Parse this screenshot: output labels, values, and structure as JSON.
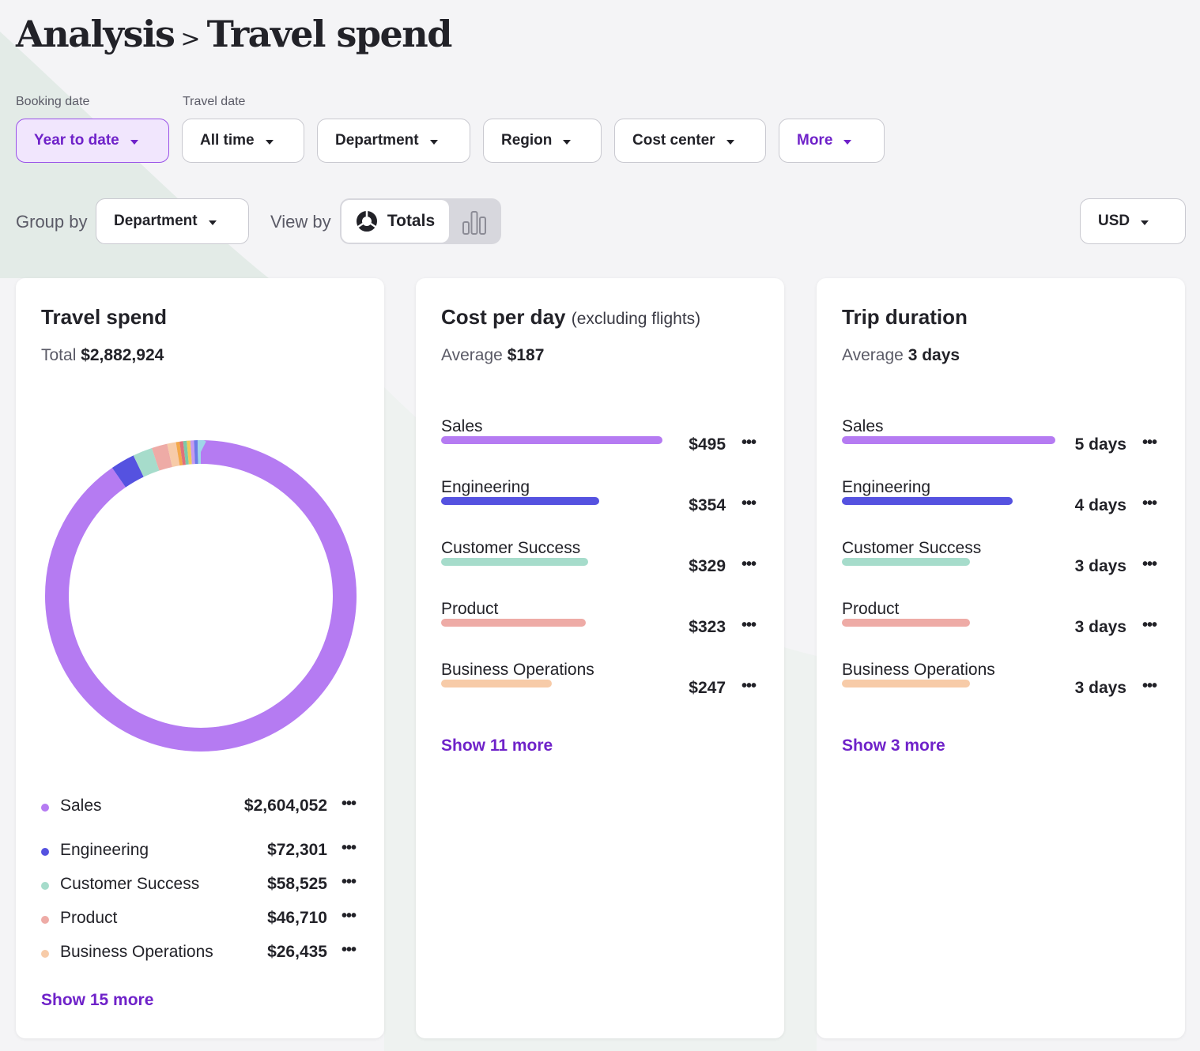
{
  "page": {
    "title_parent": "Analysis",
    "title_separator": ">",
    "title_current": "Travel spend"
  },
  "filters": {
    "booking_label": "Booking date",
    "travel_label": "Travel date",
    "booking_value": "Year to date",
    "travel_value": "All time",
    "department": "Department",
    "region": "Region",
    "cost_center": "Cost center",
    "more": "More"
  },
  "controls": {
    "group_by_label": "Group by",
    "group_by_value": "Department",
    "view_by_label": "View by",
    "view_totals": "Totals",
    "currency": "USD"
  },
  "colors": {
    "accent": "#6f22c9",
    "sales": "#b57bf2",
    "engineering": "#5552e0",
    "customer_success": "#a6dccb",
    "product": "#eeaba6",
    "business_operations": "#f7cba8"
  },
  "travel_spend": {
    "title": "Travel spend",
    "total_label": "Total",
    "total_value": "$2,882,924",
    "items": [
      {
        "label": "Sales",
        "value": "$2,604,052",
        "color": "#b57bf2"
      },
      {
        "label": "Engineering",
        "value": "$72,301",
        "color": "#5552e0"
      },
      {
        "label": "Customer Success",
        "value": "$58,525",
        "color": "#a6dccb"
      },
      {
        "label": "Product",
        "value": "$46,710",
        "color": "#eeaba6"
      },
      {
        "label": "Business Operations",
        "value": "$26,435",
        "color": "#f7cba8"
      }
    ],
    "show_more": "Show 15 more"
  },
  "chart_data": {
    "type": "pie",
    "categories": [
      "Sales",
      "Engineering",
      "Customer Success",
      "Product",
      "Business Operations"
    ],
    "values": [
      2604052,
      72301,
      58525,
      46710,
      26435
    ],
    "total": 2882924
  },
  "cost_per_day": {
    "title": "Cost per day",
    "subtitle": "(excluding flights)",
    "avg_label": "Average",
    "avg_value": "$187",
    "items": [
      {
        "label": "Sales",
        "value": "$495",
        "amount": 495,
        "color": "#b57bf2"
      },
      {
        "label": "Engineering",
        "value": "$354",
        "amount": 354,
        "color": "#5552e0"
      },
      {
        "label": "Customer Success",
        "value": "$329",
        "amount": 329,
        "color": "#a6dccb"
      },
      {
        "label": "Product",
        "value": "$323",
        "amount": 323,
        "color": "#eeaba6"
      },
      {
        "label": "Business Operations",
        "value": "$247",
        "amount": 247,
        "color": "#f7cba8"
      }
    ],
    "show_more": "Show 11 more"
  },
  "trip_duration": {
    "title": "Trip duration",
    "avg_label": "Average",
    "avg_value": "3 days",
    "items": [
      {
        "label": "Sales",
        "value": "5 days",
        "amount": 5,
        "color": "#b57bf2"
      },
      {
        "label": "Engineering",
        "value": "4 days",
        "amount": 4,
        "color": "#5552e0"
      },
      {
        "label": "Customer Success",
        "value": "3 days",
        "amount": 3,
        "color": "#a6dccb"
      },
      {
        "label": "Product",
        "value": "3 days",
        "amount": 3,
        "color": "#eeaba6"
      },
      {
        "label": "Business Operations",
        "value": "3 days",
        "amount": 3,
        "color": "#f7cba8"
      }
    ],
    "show_more": "Show 3 more"
  }
}
